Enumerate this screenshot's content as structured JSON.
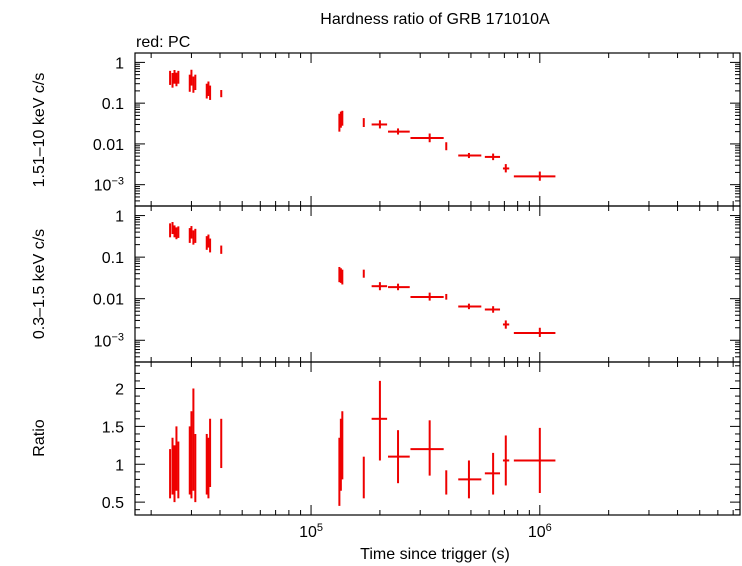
{
  "figure": {
    "title": "Hardness ratio of GRB 171010A",
    "legend_text": "red: PC",
    "xlabel": "Time since trigger (s)",
    "series_color": "#ee0000"
  },
  "chart_data": [
    {
      "type": "scatter",
      "panel": "hard",
      "ylabel": "1.51–10 keV c/s",
      "yscale": "log",
      "xscale": "log",
      "xlim": [
        17000,
        7500000
      ],
      "ylim": [
        0.0003,
        1.7
      ],
      "yticks": [
        {
          "value": 1,
          "label": "1"
        },
        {
          "value": 0.1,
          "label": "0.1"
        },
        {
          "value": 0.01,
          "label": "0.01"
        },
        {
          "value": 0.001,
          "label": "10",
          "sup": "−3"
        }
      ],
      "points": [
        {
          "x": 24200,
          "y": 0.42,
          "ylo": 0.28,
          "yhi": 0.62
        },
        {
          "x": 24800,
          "y": 0.36,
          "ylo": 0.24,
          "yhi": 0.55
        },
        {
          "x": 25300,
          "y": 0.45,
          "ylo": 0.3,
          "yhi": 0.65
        },
        {
          "x": 25800,
          "y": 0.38,
          "ylo": 0.26,
          "yhi": 0.56
        },
        {
          "x": 26300,
          "y": 0.44,
          "ylo": 0.3,
          "yhi": 0.62
        },
        {
          "x": 29500,
          "y": 0.3,
          "ylo": 0.19,
          "yhi": 0.5
        },
        {
          "x": 30000,
          "y": 0.42,
          "ylo": 0.27,
          "yhi": 0.66
        },
        {
          "x": 30600,
          "y": 0.28,
          "ylo": 0.18,
          "yhi": 0.45
        },
        {
          "x": 31200,
          "y": 0.33,
          "ylo": 0.21,
          "yhi": 0.5
        },
        {
          "x": 35000,
          "y": 0.2,
          "ylo": 0.13,
          "yhi": 0.3
        },
        {
          "x": 35600,
          "y": 0.24,
          "ylo": 0.15,
          "yhi": 0.34
        },
        {
          "x": 36200,
          "y": 0.18,
          "ylo": 0.12,
          "yhi": 0.27
        },
        {
          "x": 40500,
          "y": 0.17,
          "ylo": 0.14,
          "yhi": 0.21
        },
        {
          "x": 133000,
          "y": 0.035,
          "ylo": 0.02,
          "yhi": 0.055
        },
        {
          "x": 135000,
          "y": 0.04,
          "ylo": 0.025,
          "yhi": 0.062
        },
        {
          "x": 137000,
          "y": 0.045,
          "ylo": 0.028,
          "yhi": 0.065
        },
        {
          "x": 170000,
          "y": 0.033,
          "ylo": 0.026,
          "yhi": 0.043,
          "xlo": 169000,
          "xhi": 171000
        },
        {
          "x": 200000,
          "y": 0.03,
          "ylo": 0.024,
          "yhi": 0.038,
          "xlo": 184000,
          "xhi": 215000
        },
        {
          "x": 240000,
          "y": 0.02,
          "ylo": 0.017,
          "yhi": 0.024,
          "xlo": 217000,
          "xhi": 270000
        },
        {
          "x": 330000,
          "y": 0.014,
          "ylo": 0.011,
          "yhi": 0.018,
          "xlo": 272000,
          "xhi": 380000
        },
        {
          "x": 390000,
          "y": 0.0085,
          "ylo": 0.007,
          "yhi": 0.011,
          "xlo": 389000,
          "xhi": 391000
        },
        {
          "x": 490000,
          "y": 0.0052,
          "ylo": 0.0045,
          "yhi": 0.006,
          "xlo": 440000,
          "xhi": 555000
        },
        {
          "x": 625000,
          "y": 0.0048,
          "ylo": 0.004,
          "yhi": 0.0058,
          "xlo": 575000,
          "xhi": 670000
        },
        {
          "x": 710000,
          "y": 0.0025,
          "ylo": 0.002,
          "yhi": 0.0032,
          "xlo": 690000,
          "xhi": 735000
        },
        {
          "x": 1000000,
          "y": 0.0016,
          "ylo": 0.00125,
          "yhi": 0.0021,
          "xlo": 770000,
          "xhi": 1170000
        }
      ]
    },
    {
      "type": "scatter",
      "panel": "soft",
      "ylabel": "0.3–1.5 keV c/s",
      "yscale": "log",
      "xscale": "log",
      "xlim": [
        17000,
        7500000
      ],
      "ylim": [
        0.0003,
        1.7
      ],
      "yticks": [
        {
          "value": 1,
          "label": "1"
        },
        {
          "value": 0.1,
          "label": "0.1"
        },
        {
          "value": 0.01,
          "label": "0.01"
        },
        {
          "value": 0.001,
          "label": "10",
          "sup": "−3"
        }
      ],
      "points": [
        {
          "x": 24200,
          "y": 0.45,
          "ylo": 0.3,
          "yhi": 0.65
        },
        {
          "x": 24800,
          "y": 0.52,
          "ylo": 0.36,
          "yhi": 0.7
        },
        {
          "x": 25300,
          "y": 0.42,
          "ylo": 0.3,
          "yhi": 0.58
        },
        {
          "x": 25800,
          "y": 0.38,
          "ylo": 0.27,
          "yhi": 0.52
        },
        {
          "x": 26300,
          "y": 0.4,
          "ylo": 0.29,
          "yhi": 0.55
        },
        {
          "x": 29500,
          "y": 0.33,
          "ylo": 0.22,
          "yhi": 0.5
        },
        {
          "x": 30000,
          "y": 0.4,
          "ylo": 0.28,
          "yhi": 0.56
        },
        {
          "x": 30600,
          "y": 0.3,
          "ylo": 0.2,
          "yhi": 0.44
        },
        {
          "x": 31200,
          "y": 0.33,
          "ylo": 0.22,
          "yhi": 0.48
        },
        {
          "x": 35000,
          "y": 0.22,
          "ylo": 0.15,
          "yhi": 0.32
        },
        {
          "x": 35600,
          "y": 0.25,
          "ylo": 0.17,
          "yhi": 0.35
        },
        {
          "x": 36200,
          "y": 0.19,
          "ylo": 0.13,
          "yhi": 0.28
        },
        {
          "x": 40500,
          "y": 0.15,
          "ylo": 0.12,
          "yhi": 0.19
        },
        {
          "x": 133000,
          "y": 0.04,
          "ylo": 0.025,
          "yhi": 0.058
        },
        {
          "x": 135000,
          "y": 0.038,
          "ylo": 0.024,
          "yhi": 0.054
        },
        {
          "x": 137000,
          "y": 0.035,
          "ylo": 0.022,
          "yhi": 0.05
        },
        {
          "x": 170000,
          "y": 0.04,
          "ylo": 0.032,
          "yhi": 0.05,
          "xlo": 169000,
          "xhi": 171000
        },
        {
          "x": 200000,
          "y": 0.02,
          "ylo": 0.016,
          "yhi": 0.025,
          "xlo": 184000,
          "xhi": 215000
        },
        {
          "x": 240000,
          "y": 0.019,
          "ylo": 0.016,
          "yhi": 0.023,
          "xlo": 217000,
          "xhi": 270000
        },
        {
          "x": 330000,
          "y": 0.011,
          "ylo": 0.009,
          "yhi": 0.014,
          "xlo": 272000,
          "xhi": 380000
        },
        {
          "x": 390000,
          "y": 0.011,
          "ylo": 0.0095,
          "yhi": 0.013,
          "xlo": 389000,
          "xhi": 391000
        },
        {
          "x": 490000,
          "y": 0.0065,
          "ylo": 0.0056,
          "yhi": 0.0076,
          "xlo": 440000,
          "xhi": 555000
        },
        {
          "x": 625000,
          "y": 0.0055,
          "ylo": 0.0046,
          "yhi": 0.0066,
          "xlo": 575000,
          "xhi": 670000
        },
        {
          "x": 710000,
          "y": 0.0024,
          "ylo": 0.0019,
          "yhi": 0.003,
          "xlo": 690000,
          "xhi": 735000
        },
        {
          "x": 1000000,
          "y": 0.0015,
          "ylo": 0.0012,
          "yhi": 0.002,
          "xlo": 770000,
          "xhi": 1170000
        }
      ]
    },
    {
      "type": "scatter",
      "panel": "ratio",
      "ylabel": "Ratio",
      "yscale": "linear",
      "xscale": "log",
      "xlim": [
        17000,
        7500000
      ],
      "ylim": [
        0.33,
        2.35
      ],
      "yticks": [
        {
          "value": 2,
          "label": "2"
        },
        {
          "value": 1.5,
          "label": "1.5"
        },
        {
          "value": 1,
          "label": "1"
        },
        {
          "value": 0.5,
          "label": "0.5"
        }
      ],
      "xticks": [
        {
          "value": 100000,
          "label": "10",
          "sup": "5"
        },
        {
          "value": 1000000,
          "label": "10",
          "sup": "6"
        }
      ],
      "points": [
        {
          "x": 24200,
          "y": 0.9,
          "ylo": 0.55,
          "yhi": 1.2
        },
        {
          "x": 24800,
          "y": 1.0,
          "ylo": 0.6,
          "yhi": 1.35
        },
        {
          "x": 25300,
          "y": 0.85,
          "ylo": 0.5,
          "yhi": 1.25
        },
        {
          "x": 25800,
          "y": 1.1,
          "ylo": 0.65,
          "yhi": 1.5
        },
        {
          "x": 26300,
          "y": 0.95,
          "ylo": 0.55,
          "yhi": 1.3
        },
        {
          "x": 29500,
          "y": 1.05,
          "ylo": 0.6,
          "yhi": 1.5
        },
        {
          "x": 30000,
          "y": 1.0,
          "ylo": 0.55,
          "yhi": 1.7
        },
        {
          "x": 30600,
          "y": 1.2,
          "ylo": 0.65,
          "yhi": 2.0
        },
        {
          "x": 31200,
          "y": 0.9,
          "ylo": 0.5,
          "yhi": 1.4
        },
        {
          "x": 35000,
          "y": 1.0,
          "ylo": 0.6,
          "yhi": 1.4
        },
        {
          "x": 35600,
          "y": 0.95,
          "ylo": 0.55,
          "yhi": 1.35
        },
        {
          "x": 36200,
          "y": 1.15,
          "ylo": 0.7,
          "yhi": 1.6
        },
        {
          "x": 40500,
          "y": 1.25,
          "ylo": 0.95,
          "yhi": 1.6
        },
        {
          "x": 133000,
          "y": 0.9,
          "ylo": 0.45,
          "yhi": 1.35
        },
        {
          "x": 135000,
          "y": 1.1,
          "ylo": 0.65,
          "yhi": 1.6
        },
        {
          "x": 137000,
          "y": 1.25,
          "ylo": 0.8,
          "yhi": 1.7
        },
        {
          "x": 170000,
          "y": 0.85,
          "ylo": 0.55,
          "yhi": 1.1,
          "xlo": 169000,
          "xhi": 171000
        },
        {
          "x": 200000,
          "y": 1.6,
          "ylo": 1.05,
          "yhi": 2.1,
          "xlo": 184000,
          "xhi": 215000
        },
        {
          "x": 240000,
          "y": 1.1,
          "ylo": 0.75,
          "yhi": 1.45,
          "xlo": 217000,
          "xhi": 270000
        },
        {
          "x": 330000,
          "y": 1.2,
          "ylo": 0.85,
          "yhi": 1.58,
          "xlo": 272000,
          "xhi": 380000
        },
        {
          "x": 390000,
          "y": 0.75,
          "ylo": 0.6,
          "yhi": 0.92,
          "xlo": 389000,
          "xhi": 391000
        },
        {
          "x": 490000,
          "y": 0.8,
          "ylo": 0.55,
          "yhi": 1.05,
          "xlo": 440000,
          "xhi": 555000
        },
        {
          "x": 625000,
          "y": 0.88,
          "ylo": 0.6,
          "yhi": 1.15,
          "xlo": 575000,
          "xhi": 670000
        },
        {
          "x": 710000,
          "y": 1.05,
          "ylo": 0.72,
          "yhi": 1.38,
          "xlo": 690000,
          "xhi": 735000
        },
        {
          "x": 1000000,
          "y": 1.05,
          "ylo": 0.62,
          "yhi": 1.48,
          "xlo": 770000,
          "xhi": 1170000
        }
      ]
    }
  ]
}
